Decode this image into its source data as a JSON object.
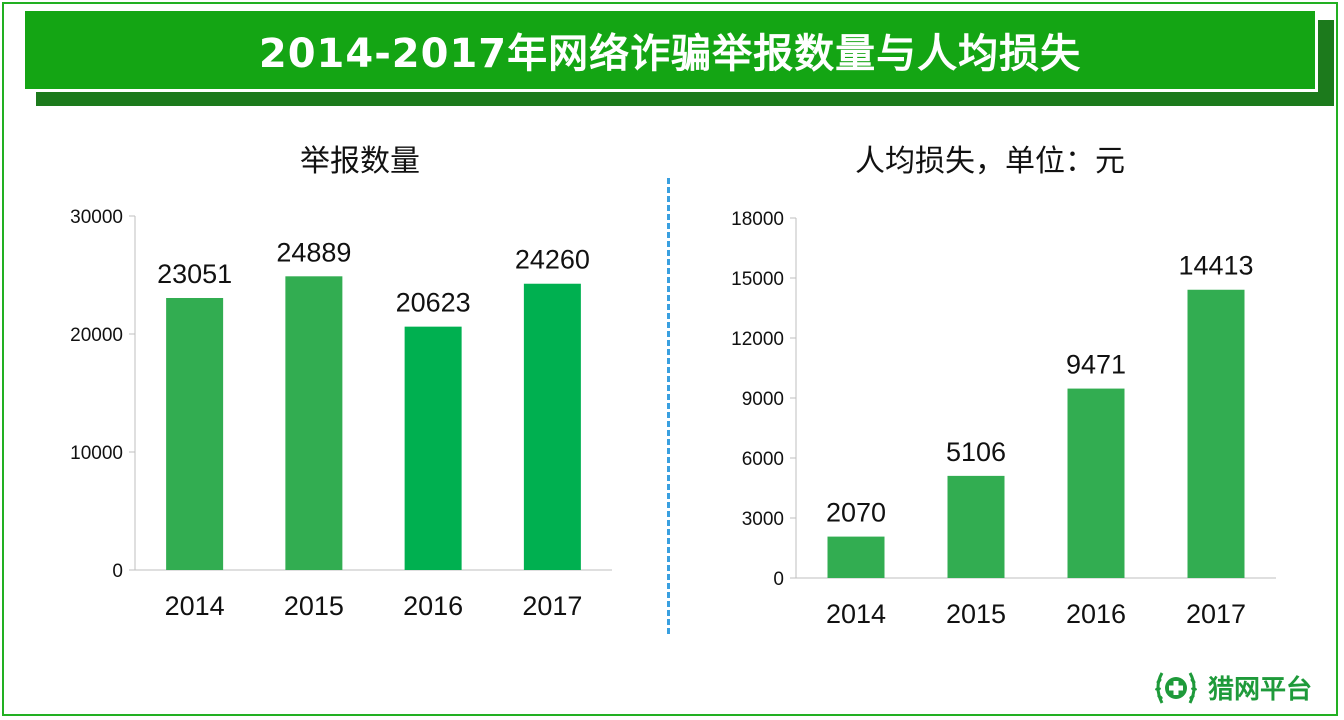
{
  "title": "2014-2017年网络诈骗举报数量与人均损失",
  "brand": {
    "name": "猎网平台",
    "color": "#1e9a3a"
  },
  "colors": {
    "banner": "#14a514",
    "bar": "#32ad51",
    "bar_alt": "#00b050",
    "divider": "#3aa0e0"
  },
  "chart_data": [
    {
      "type": "bar",
      "title": "举报数量",
      "categories": [
        "2014",
        "2015",
        "2016",
        "2017"
      ],
      "values": [
        23051,
        24889,
        20623,
        24260
      ],
      "ylim": [
        0,
        30000
      ],
      "yticks": [
        0,
        10000,
        20000,
        30000
      ],
      "grid": false
    },
    {
      "type": "bar",
      "title": "人均损失，单位：元",
      "categories": [
        "2014",
        "2015",
        "2016",
        "2017"
      ],
      "values": [
        2070,
        5106,
        9471,
        14413
      ],
      "ylim": [
        0,
        18000
      ],
      "yticks": [
        0,
        3000,
        6000,
        9000,
        12000,
        15000,
        18000
      ],
      "grid": false
    }
  ]
}
